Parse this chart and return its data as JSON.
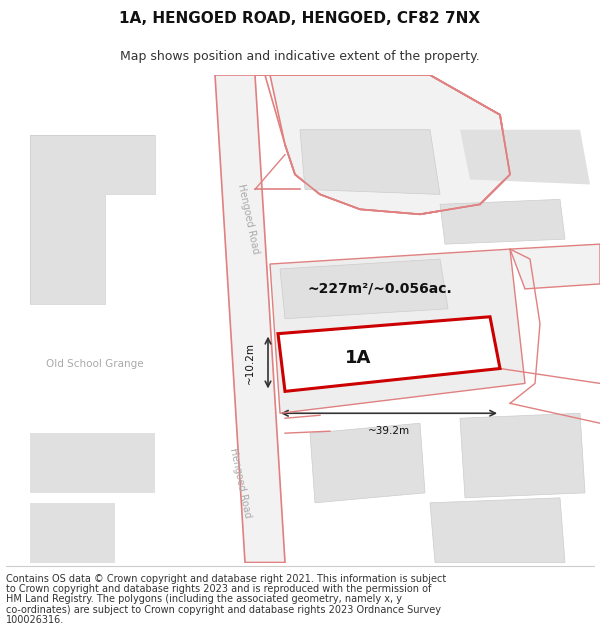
{
  "title": "1A, HENGOED ROAD, HENGOED, CF82 7NX",
  "subtitle": "Map shows position and indicative extent of the property.",
  "footer_lines": [
    "Contains OS data © Crown copyright and database right 2021. This information is subject",
    "to Crown copyright and database rights 2023 and is reproduced with the permission of",
    "HM Land Registry. The polygons (including the associated geometry, namely x, y",
    "co-ordinates) are subject to Crown copyright and database rights 2023 Ordnance Survey",
    "100026316."
  ],
  "bg_color": "#ffffff",
  "building_fill": "#e0e0e0",
  "road_line_color": "#e08080",
  "highlight_line_color": "#cc0000",
  "dim_line_color": "#333333",
  "title_fontsize": 11,
  "subtitle_fontsize": 9,
  "footer_fontsize": 7,
  "area_label": "~227m²/~0.056ac.",
  "property_label": "1A",
  "dim_h": "~10.2m",
  "dim_w": "~39.2m"
}
